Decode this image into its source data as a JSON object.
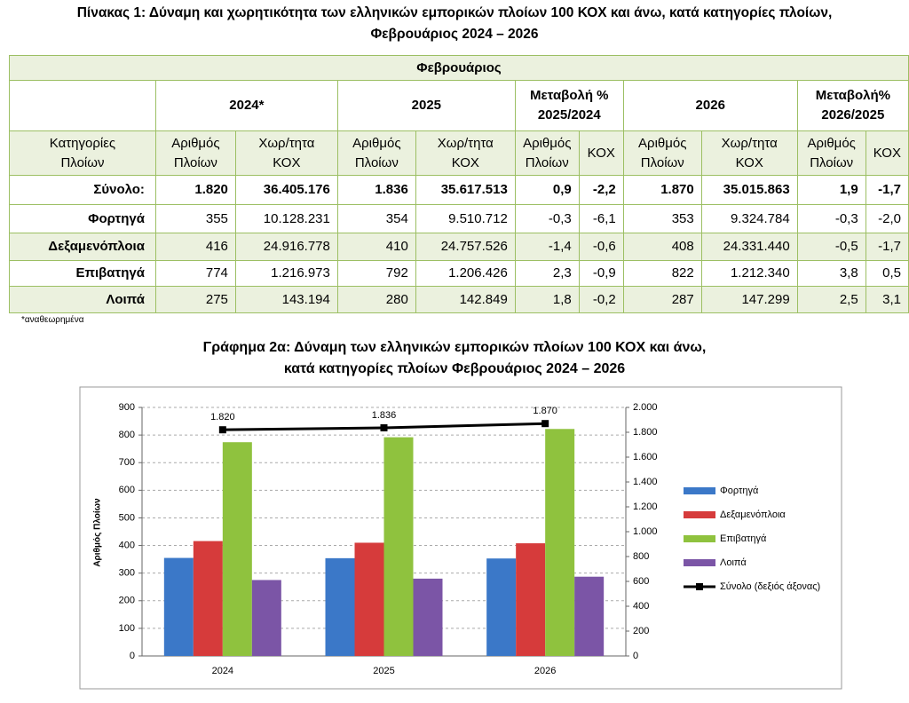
{
  "header": {
    "title_line1": "Πίνακας 1: Δύναμη και χωρητικότητα των ελληνικών εμπορικών πλοίων 100 ΚΟΧ και άνω, κατά κατηγορίες πλοίων,",
    "title_line2": "Φεβρουάριος 2024 – 2026"
  },
  "table": {
    "top_header": "Φεβρουάριος",
    "groups": [
      "2024*",
      "2025",
      "Μεταβολή %\n2025/2024",
      "2026",
      "Μεταβολή%\n2026/2025"
    ],
    "columns": [
      "Κατηγορίες\nΠλοίων",
      "Αριθμός\nΠλοίων",
      "Χωρ/τητα\nΚΟΧ",
      "Αριθμός\nΠλοίων",
      "Χωρ/τητα\nΚΟΧ",
      "Αριθμός\nΠλοίων",
      "ΚΟΧ",
      "Αριθμός\nΠλοίων",
      "Χωρ/τητα\nΚΟΧ",
      "Αριθμός\nΠλοίων",
      "ΚΟΧ"
    ],
    "rows": [
      [
        "Σύνολο:",
        "1.820",
        "36.405.176",
        "1.836",
        "35.617.513",
        "0,9",
        "-2,2",
        "1.870",
        "35.015.863",
        "1,9",
        "-1,7"
      ],
      [
        "Φορτηγά",
        "355",
        "10.128.231",
        "354",
        "9.510.712",
        "-0,3",
        "-6,1",
        "353",
        "9.324.784",
        "-0,3",
        "-2,0"
      ],
      [
        "Δεξαμενόπλοια",
        "416",
        "24.916.778",
        "410",
        "24.757.526",
        "-1,4",
        "-0,6",
        "408",
        "24.331.440",
        "-0,5",
        "-1,7"
      ],
      [
        "Επιβατηγά",
        "774",
        "1.216.973",
        "792",
        "1.206.426",
        "2,3",
        "-0,9",
        "822",
        "1.212.340",
        "3,8",
        "0,5"
      ],
      [
        "Λοιπά",
        "275",
        "143.194",
        "280",
        "142.849",
        "1,8",
        "-0,2",
        "287",
        "147.299",
        "2,5",
        "3,1"
      ]
    ],
    "footnote": "*αναθεωρημένα"
  },
  "chart_data": {
    "type": "bar",
    "title_line1": "Γράφημα 2α: Δύναμη των ελληνικών εμπορικών πλοίων 100 ΚΟΧ και άνω,",
    "title_line2": "κατά κατηγορίες πλοίων Φεβρουάριος 2024 – 2026",
    "y_label": "Αριθμός Πλοίων",
    "categories": [
      "2024",
      "2025",
      "2026"
    ],
    "series": [
      {
        "name": "Φορτηγά",
        "color": "#3b78c8",
        "values": [
          355,
          354,
          353
        ]
      },
      {
        "name": "Δεξαμενόπλοια",
        "color": "#d63b3b",
        "values": [
          416,
          410,
          408
        ]
      },
      {
        "name": "Επιβατηγά",
        "color": "#8fc23e",
        "values": [
          774,
          792,
          822
        ]
      },
      {
        "name": "Λοιπά",
        "color": "#7b55a6",
        "values": [
          275,
          280,
          287
        ]
      },
      {
        "name": "Σύνολο (δεξιός άξονας)",
        "color": "#000000",
        "type": "line",
        "axis": "y2",
        "values": [
          1820,
          1836,
          1870
        ],
        "value_labels": [
          "1.820",
          "1.836",
          "1.870"
        ]
      }
    ],
    "ylim": [
      0,
      900
    ],
    "yticks": [
      0,
      100,
      200,
      300,
      400,
      500,
      600,
      700,
      800,
      900
    ],
    "y2lim": [
      0,
      2000
    ],
    "y2ticks": [
      0,
      200,
      400,
      600,
      800,
      {
        "value": 1000,
        "label": "1.000"
      },
      {
        "value": 1200,
        "label": "1.200"
      },
      {
        "value": 1400,
        "label": "1.400"
      },
      {
        "value": 1600,
        "label": "1.600"
      },
      {
        "value": 1800,
        "label": "1.800"
      },
      {
        "value": 2000,
        "label": "2.000"
      }
    ],
    "grid": true,
    "legend": "right"
  }
}
